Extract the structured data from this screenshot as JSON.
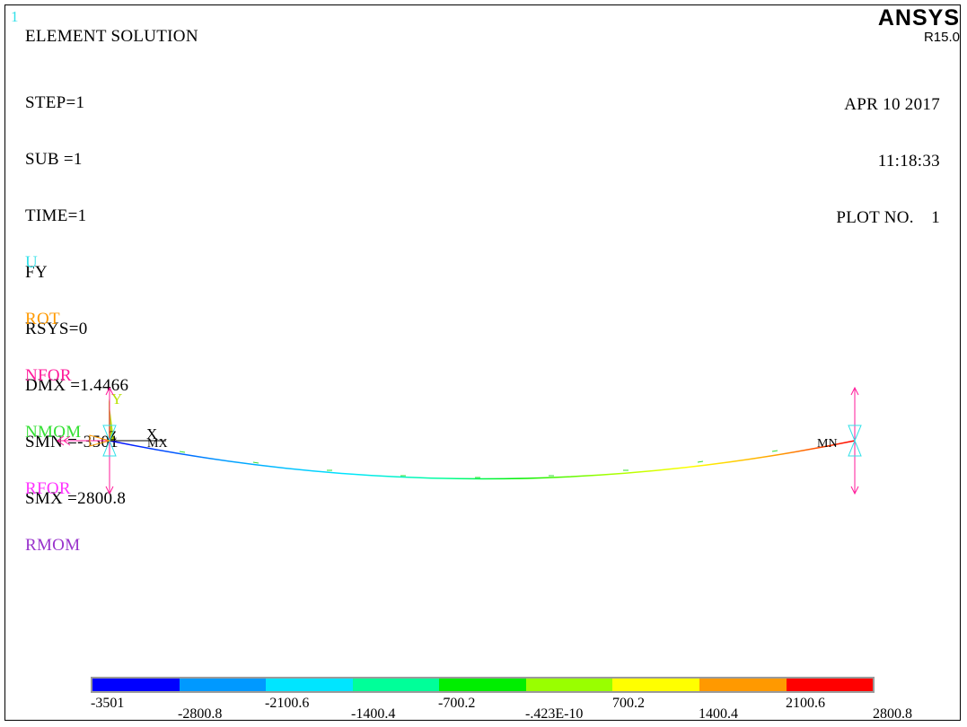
{
  "window_number": "1",
  "title": "ELEMENT SOLUTION",
  "solution_info": [
    "STEP=1",
    "SUB =1",
    "TIME=1",
    "FY",
    "RSYS=0",
    "DMX =1.4466",
    "SMN =-3501",
    "SMX =2800.8"
  ],
  "symbol_legend": [
    {
      "label": "U",
      "color": "#33e0e8"
    },
    {
      "label": "ROT",
      "color": "#ff9a00"
    },
    {
      "label": "NFOR",
      "color": "#ff1a9a"
    },
    {
      "label": "NMOM",
      "color": "#33e033"
    },
    {
      "label": "RFOR",
      "color": "#ff33ff"
    },
    {
      "label": "RMOM",
      "color": "#9933cc"
    }
  ],
  "brand": {
    "name": "ANSYS",
    "release": "R15.0"
  },
  "stamp": {
    "date": "APR 10 2017",
    "time": "11:18:33",
    "plot_label": "PLOT NO.",
    "plot_number": "1"
  },
  "markers": {
    "min_label": "MX",
    "max_label": "MN",
    "axis_x": "X",
    "axis_y": "Y",
    "axis_z": "Z"
  },
  "contour": {
    "bands": [
      {
        "color": "#0000ff"
      },
      {
        "color": "#0099ff"
      },
      {
        "color": "#00e5ff"
      },
      {
        "color": "#00ff99"
      },
      {
        "color": "#00ee00"
      },
      {
        "color": "#99ff00"
      },
      {
        "color": "#ffff00"
      },
      {
        "color": "#ff9900"
      },
      {
        "color": "#ff0000"
      }
    ],
    "labels_upper": [
      "-3501",
      "-2100.6",
      "-700.2",
      "700.2",
      "2100.6"
    ],
    "labels_lower": [
      "-2800.8",
      "-1400.4",
      "-.423E-10",
      "1400.4",
      "2800.8"
    ]
  }
}
